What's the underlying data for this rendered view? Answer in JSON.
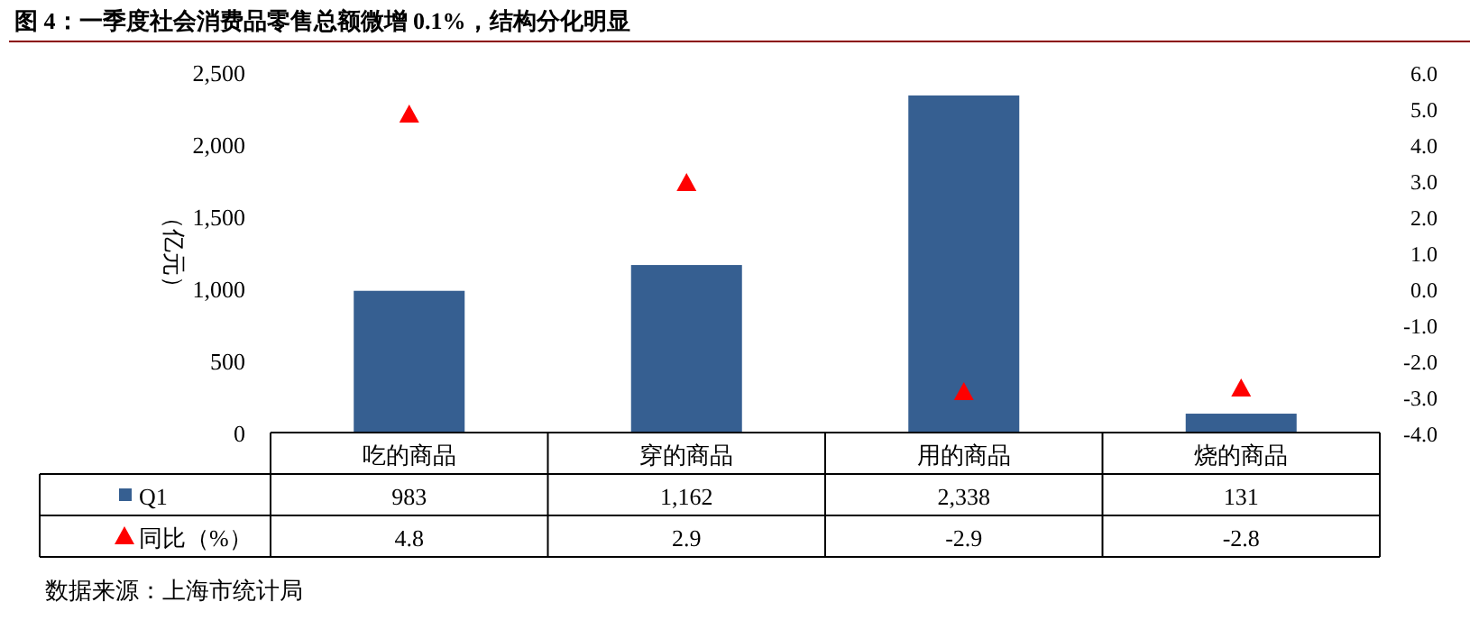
{
  "chart_data": {
    "type": "bar",
    "title": "图 4：一季度社会消费品零售总额微增 0.1%，结构分化明显",
    "ylabel": "（亿元）",
    "categories": [
      "吃的商品",
      "穿的商品",
      "用的商品",
      "烧的商品"
    ],
    "series": [
      {
        "name": "Q1",
        "type": "bar",
        "color": "#365f91",
        "values": [
          983,
          1162,
          2338,
          131
        ],
        "value_labels": [
          "983",
          "1,162",
          "2,338",
          "131"
        ]
      },
      {
        "name": "同比（%）",
        "type": "scatter",
        "axis": "y2",
        "marker": "triangle",
        "color": "#ff0000",
        "values": [
          4.8,
          2.9,
          -2.9,
          -2.8
        ],
        "value_labels": [
          "4.8",
          "2.9",
          "-2.9",
          "-2.8"
        ]
      }
    ],
    "ylim": [
      0,
      2500
    ],
    "yticks": [
      0,
      500,
      {
        "value": 1000,
        "label": "1,000"
      },
      {
        "value": 1500,
        "label": "1,500"
      },
      {
        "value": 2000,
        "label": "2,000"
      },
      {
        "value": 2500,
        "label": "2,500"
      }
    ],
    "y2lim": [
      -4,
      6
    ],
    "y2ticks": [
      {
        "value": 6,
        "label": "6.0"
      },
      {
        "value": 5,
        "label": "5.0"
      },
      {
        "value": 4,
        "label": "4.0"
      },
      {
        "value": 3,
        "label": "3.0"
      },
      {
        "value": 2,
        "label": "2.0"
      },
      {
        "value": 1,
        "label": "1.0"
      },
      {
        "value": 0,
        "label": "0.0"
      },
      {
        "value": -1,
        "label": "-1.0"
      },
      {
        "value": -2,
        "label": "-2.0"
      },
      {
        "value": -3,
        "label": "-3.0"
      },
      {
        "value": -4,
        "label": "-4.0"
      }
    ],
    "grid": false,
    "legend": "bottom",
    "annotations": [
      "数据来源：上海市统计局"
    ]
  }
}
